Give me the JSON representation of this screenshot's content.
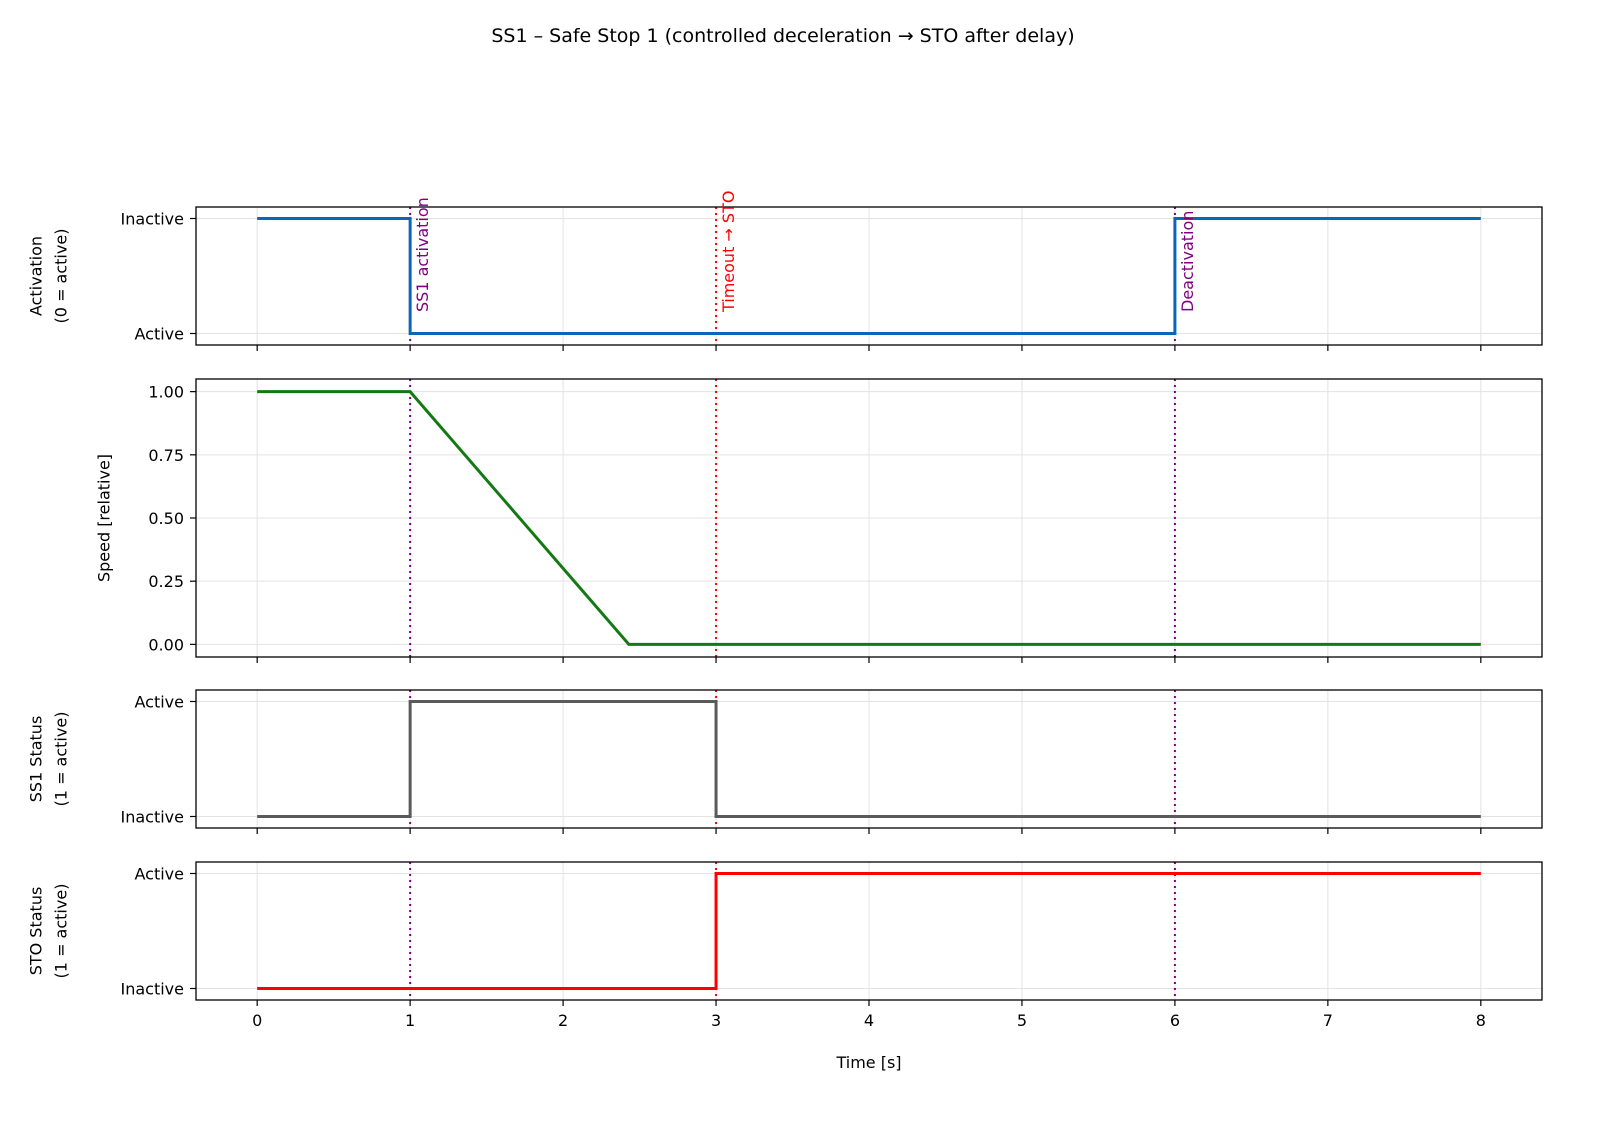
{
  "chart_data": {
    "title": "SS1 – Safe Stop 1 (controlled deceleration → STO after delay)",
    "xlabel": "Time [s]",
    "xlim": [
      -0.4,
      8.4
    ],
    "xticks": [
      0,
      1,
      2,
      3,
      4,
      5,
      6,
      7,
      8
    ],
    "grid": true,
    "panels": [
      {
        "type": "line",
        "ylabel": [
          "Activation",
          "(0 = active)"
        ],
        "ylim": [
          -0.1,
          1.1
        ],
        "yticks": [
          {
            "value": 0,
            "label": "Active"
          },
          {
            "value": 1,
            "label": "Inactive"
          }
        ],
        "color": "#0a66b8",
        "points": [
          [
            0,
            1
          ],
          [
            1,
            1
          ],
          [
            1,
            0
          ],
          [
            6,
            0
          ],
          [
            6,
            1
          ],
          [
            8,
            1
          ]
        ]
      },
      {
        "type": "line",
        "ylabel": [
          "Speed [relative]"
        ],
        "ylim": [
          -0.05,
          1.05
        ],
        "yticks": [
          {
            "value": 0,
            "label": "0.00"
          },
          {
            "value": 0.25,
            "label": "0.25"
          },
          {
            "value": 0.5,
            "label": "0.50"
          },
          {
            "value": 0.75,
            "label": "0.75"
          },
          {
            "value": 1,
            "label": "1.00"
          }
        ],
        "color": "#137a13",
        "points": [
          [
            0,
            1
          ],
          [
            1,
            1
          ],
          [
            2.43,
            0
          ],
          [
            8,
            0
          ]
        ]
      },
      {
        "type": "line",
        "ylabel": [
          "SS1 Status",
          "(1 = active)"
        ],
        "ylim": [
          -0.1,
          1.1
        ],
        "yticks": [
          {
            "value": 0,
            "label": "Inactive"
          },
          {
            "value": 1,
            "label": "Active"
          }
        ],
        "color": "#5a5a5a",
        "points": [
          [
            0,
            0
          ],
          [
            1,
            0
          ],
          [
            1,
            1
          ],
          [
            3,
            1
          ],
          [
            3,
            0
          ],
          [
            8,
            0
          ]
        ]
      },
      {
        "type": "line",
        "ylabel": [
          "STO Status",
          "(1 = active)"
        ],
        "ylim": [
          -0.1,
          1.1
        ],
        "yticks": [
          {
            "value": 0,
            "label": "Inactive"
          },
          {
            "value": 1,
            "label": "Active"
          }
        ],
        "color": "#ff0000",
        "points": [
          [
            0,
            0
          ],
          [
            3,
            0
          ],
          [
            3,
            1
          ],
          [
            8,
            1
          ]
        ]
      }
    ],
    "events": [
      {
        "x": 1,
        "label": "SS1 activation",
        "color": "#800080"
      },
      {
        "x": 3,
        "label": "Timeout → STO",
        "color": "#ff0000"
      },
      {
        "x": 6,
        "label": "Deactivation",
        "color": "#800080"
      }
    ]
  }
}
